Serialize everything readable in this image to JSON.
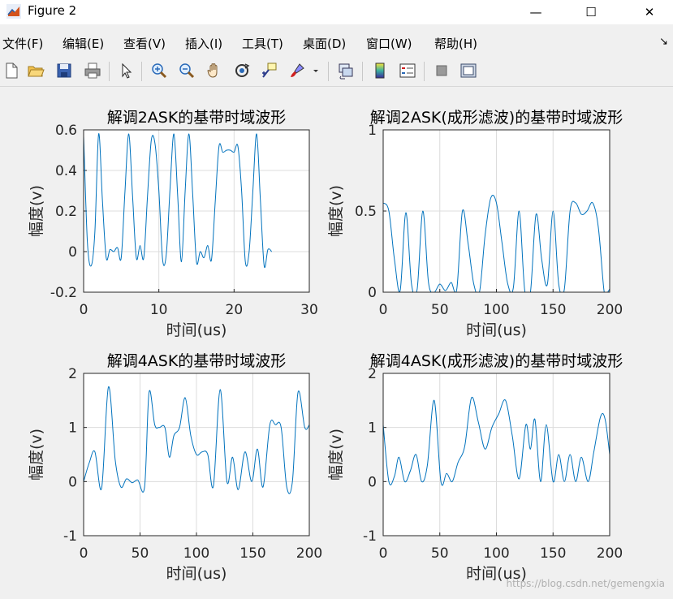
{
  "window": {
    "title": "Figure 2",
    "minimize": "—",
    "maximize": "☐",
    "close": "✕"
  },
  "menu": {
    "items": [
      "文件(F)",
      "编辑(E)",
      "查看(V)",
      "插入(I)",
      "工具(T)",
      "桌面(D)",
      "窗口(W)",
      "帮助(H)"
    ],
    "overflow": "↘"
  },
  "toolbar": {
    "icons": [
      "new-figure-icon",
      "open-file-icon",
      "save-icon",
      "print-icon",
      "pointer-icon",
      "zoom-in-icon",
      "zoom-out-icon",
      "pan-hand-icon",
      "rotate-3d-icon",
      "data-cursor-icon",
      "brush-icon",
      "brush-dropdown-icon",
      "link-plot-icon",
      "colorbar-icon",
      "legend-icon",
      "hide-plot-tools-icon",
      "show-plot-tools-icon"
    ]
  },
  "colors": {
    "line": "#0072bd",
    "axes_bg": "#ffffff",
    "grid": "#dcdcdc",
    "figure_bg": "#f0f0f0"
  },
  "watermark": "https://blog.csdn.net/gemengxia",
  "chart_data": [
    {
      "type": "line",
      "title": "解调2ASK的基带时域波形",
      "xlabel": "时间(us)",
      "ylabel": "幅度(v)",
      "xlim": [
        0,
        30
      ],
      "ylim": [
        -0.2,
        0.6
      ],
      "xticks": [
        "0",
        "10",
        "20",
        "30"
      ],
      "yticks": [
        "-0.2",
        "0",
        "0.2",
        "0.4",
        "0.6"
      ],
      "grid": true,
      "series": [
        {
          "x": [
            0,
            0.5,
            1,
            1.5,
            2,
            2.5,
            3,
            3.5,
            4,
            4.5,
            5,
            5.5,
            6,
            6.5,
            7,
            7.5,
            8,
            8.5,
            9,
            9.5,
            10,
            10.5,
            11,
            11.5,
            12,
            12.5,
            13,
            13.5,
            14,
            14.5,
            15,
            15.5,
            16,
            16.5,
            17,
            17.5,
            18,
            18.5,
            19,
            19.5,
            20,
            20.5,
            21,
            21.5,
            22,
            22.5,
            23,
            23.5,
            24,
            24.5,
            25
          ],
          "y": [
            0.57,
            0.05,
            -0.07,
            0.1,
            0.58,
            0.25,
            -0.03,
            0.01,
            0.0,
            0.02,
            -0.03,
            0.3,
            0.58,
            0.28,
            -0.03,
            0.03,
            -0.03,
            0.28,
            0.55,
            0.53,
            0.3,
            -0.04,
            -0.01,
            0.32,
            0.58,
            0.28,
            -0.05,
            0.3,
            0.58,
            0.28,
            -0.05,
            0.0,
            -0.03,
            0.03,
            -0.04,
            0.25,
            0.52,
            0.49,
            0.5,
            0.5,
            0.49,
            0.52,
            0.3,
            -0.05,
            0.0,
            0.3,
            0.58,
            0.25,
            -0.07,
            0.01,
            0.0
          ]
        }
      ]
    },
    {
      "type": "line",
      "title": "解调2ASK(成形滤波)的基带时域波形",
      "xlabel": "时间(us)",
      "ylabel": "幅度(v)",
      "xlim": [
        0,
        200
      ],
      "ylim": [
        0,
        1
      ],
      "xticks": [
        "0",
        "50",
        "100",
        "150",
        "200"
      ],
      "yticks": [
        "0",
        "0.5",
        "1"
      ],
      "grid": true,
      "series": [
        {
          "x": [
            0,
            5,
            10,
            15,
            20,
            25,
            30,
            35,
            40,
            45,
            50,
            55,
            60,
            65,
            70,
            75,
            80,
            85,
            90,
            95,
            100,
            105,
            110,
            115,
            120,
            125,
            130,
            135,
            140,
            145,
            150,
            155,
            160,
            165,
            170,
            175,
            180,
            185,
            190,
            195,
            198,
            200
          ],
          "y": [
            0.55,
            0.5,
            0.2,
            0.01,
            0.49,
            0.05,
            0.02,
            0.5,
            0.06,
            0.0,
            0.05,
            0.01,
            0.06,
            0.02,
            0.5,
            0.3,
            0.05,
            0.0,
            0.35,
            0.58,
            0.55,
            0.3,
            0.05,
            0.03,
            0.5,
            0.01,
            0.0,
            0.48,
            0.2,
            0.05,
            0.5,
            0.05,
            0.02,
            0.5,
            0.55,
            0.48,
            0.5,
            0.55,
            0.4,
            0.01,
            0.0,
            0.02
          ]
        }
      ]
    },
    {
      "type": "line",
      "title": "解调4ASK的基带时域波形",
      "xlabel": "时间(us)",
      "ylabel": "幅度(v)",
      "xlim": [
        0,
        200
      ],
      "ylim": [
        -1,
        2
      ],
      "xticks": [
        "0",
        "50",
        "100",
        "150",
        "200"
      ],
      "yticks": [
        "-1",
        "0",
        "1",
        "2"
      ],
      "grid": true,
      "series": [
        {
          "x": [
            0,
            5,
            10,
            16,
            22,
            28,
            33,
            38,
            43,
            48,
            54,
            58,
            63,
            67,
            72,
            76,
            80,
            85,
            90,
            95,
            100,
            105,
            110,
            115,
            121,
            127,
            132,
            137,
            143,
            149,
            154,
            159,
            165,
            170,
            175,
            180,
            185,
            190,
            196,
            200
          ],
          "y": [
            0.0,
            0.35,
            0.55,
            -0.12,
            1.75,
            0.4,
            -0.1,
            0.05,
            -0.02,
            0.03,
            -0.1,
            1.65,
            1.05,
            1.0,
            1.0,
            0.45,
            0.85,
            1.0,
            1.55,
            0.85,
            0.5,
            0.55,
            0.5,
            -0.08,
            1.7,
            0.0,
            0.45,
            -0.15,
            0.55,
            0.0,
            0.6,
            -0.1,
            1.05,
            1.05,
            1.0,
            -0.1,
            0.0,
            1.65,
            1.0,
            1.05
          ]
        }
      ]
    },
    {
      "type": "line",
      "title": "解调4ASK(成形滤波)的基带时域波形",
      "xlabel": "时间(us)",
      "ylabel": "幅度(v)",
      "xlim": [
        0,
        200
      ],
      "ylim": [
        -1,
        2
      ],
      "xticks": [
        "0",
        "50",
        "100",
        "150",
        "200"
      ],
      "yticks": [
        "-1",
        "0",
        "1",
        "2"
      ],
      "grid": true,
      "series": [
        {
          "x": [
            0,
            5,
            10,
            14,
            19,
            24,
            29,
            34,
            39,
            45,
            51,
            56,
            61,
            66,
            72,
            78,
            84,
            90,
            96,
            102,
            108,
            114,
            120,
            126,
            130,
            134,
            139,
            144,
            150,
            155,
            160,
            165,
            170,
            175,
            181,
            186,
            192,
            196,
            200
          ],
          "y": [
            1.05,
            0.0,
            0.1,
            0.45,
            0.0,
            0.2,
            0.5,
            0.0,
            0.3,
            1.5,
            0.0,
            0.15,
            0.0,
            0.35,
            0.65,
            1.55,
            1.1,
            0.6,
            1.0,
            1.25,
            1.5,
            0.85,
            0.05,
            1.05,
            0.6,
            1.15,
            0.0,
            1.05,
            0.0,
            0.5,
            0.0,
            0.5,
            0.0,
            0.45,
            0.0,
            0.55,
            1.2,
            1.15,
            0.5
          ]
        }
      ]
    }
  ]
}
